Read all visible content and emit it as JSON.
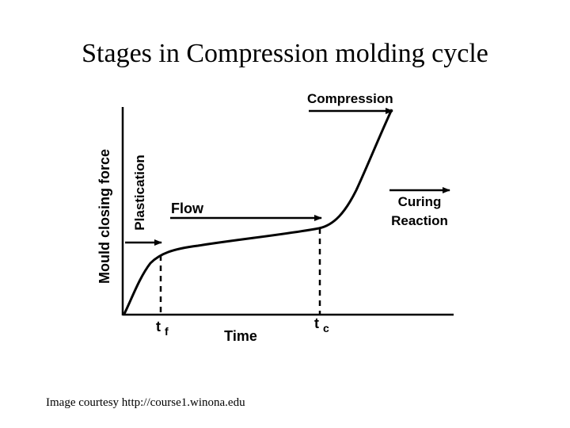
{
  "slide": {
    "title": "Stages in Compression molding cycle",
    "credit": "Image courtesy http://course1.winona.edu"
  },
  "diagram": {
    "y_axis_label": "Mould closing force",
    "x_axis_label": "Time",
    "plastication_label": "Plastication",
    "flow_label": "Flow",
    "compression_label": "Compression",
    "curing_label_line1": "Curing",
    "curing_label_line2": "Reaction",
    "tf_label_main": "t",
    "tf_label_sub": "f",
    "tc_label_main": "t",
    "tc_label_sub": "c",
    "ink_color": "#000000"
  }
}
